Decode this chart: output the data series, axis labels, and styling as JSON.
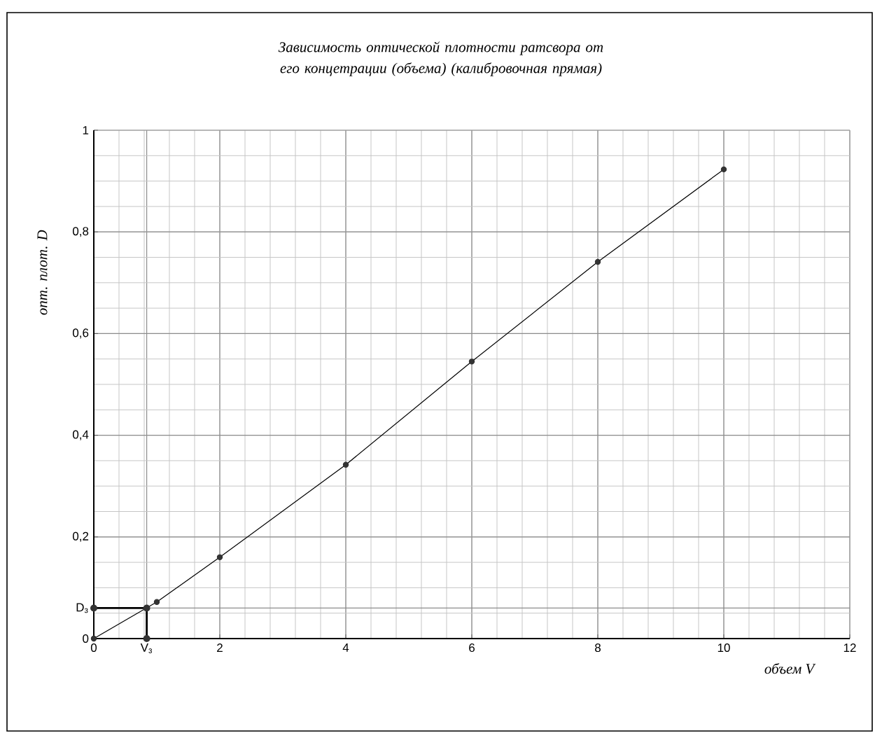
{
  "chart_data": {
    "type": "line",
    "title": "Зависимость оптической плотности ратсвора от его концетрации (объема) (калибровочная прямая)",
    "xlabel": "объем V",
    "ylabel": "опт. плот. D",
    "xlim": [
      0,
      12
    ],
    "ylim": [
      0,
      1
    ],
    "xticks": [
      0,
      {
        "value": 0.84,
        "label": "V$_{з}$"
      },
      2,
      4,
      6,
      8,
      10,
      12
    ],
    "yticks": [
      0,
      {
        "value": 0.06,
        "label": "D$_{з}$"
      },
      {
        "value": 0.2,
        "label": "0,2"
      },
      {
        "value": 0.4,
        "label": "0,4"
      },
      {
        "value": 0.6,
        "label": "0,6"
      },
      {
        "value": 0.8,
        "label": "0,8"
      },
      1
    ],
    "grid": true,
    "marker": "circle",
    "line_style": "solid",
    "series": [
      {
        "color": "#000000",
        "x": [
          0,
          1,
          2,
          4,
          6,
          8,
          10
        ],
        "values": [
          0,
          0.072,
          0.16,
          0.342,
          0.545,
          0.741,
          0.923
        ]
      },
      {
        "color": "#000000",
        "x": [
          0,
          0.84,
          0.84
        ],
        "values": [
          0.06,
          0.06,
          0
        ]
      }
    ]
  }
}
